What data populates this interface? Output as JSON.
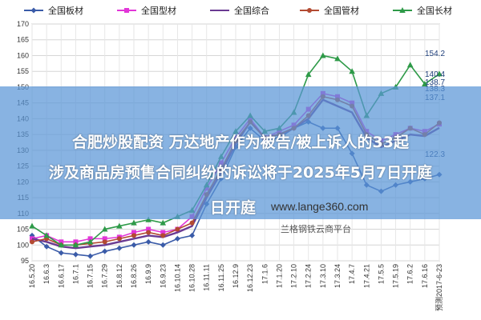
{
  "chart_data": {
    "type": "line",
    "ylim": [
      95,
      170
    ],
    "yticks": [
      95,
      100,
      105,
      110,
      115,
      120,
      125,
      130,
      135,
      140,
      145,
      150,
      155,
      160,
      165,
      170
    ],
    "grid": true,
    "legend_position": "top",
    "categories": [
      "16.5.20",
      "16.6.3",
      "16.6.17",
      "16.7.1",
      "16.7.15",
      "16.7.29",
      "16.8.12",
      "16.8.26",
      "16.9.9",
      "16.9.23",
      "16.10.14",
      "16.10.28",
      "16.11.11",
      "16.11.25",
      "16.12.9",
      "16.12.23",
      "17.1.6",
      "17.1.20",
      "17.2.10",
      "17.2.24",
      "17.3.10",
      "17.3.24",
      "17.4.7",
      "17.4.21",
      "17.5.5",
      "17.5.19",
      "17.6.2",
      "17.6.16",
      "预测2017-6-23"
    ],
    "series": [
      {
        "name": "全国板材",
        "color": "#3a5ba8",
        "marker": "diamond",
        "values": [
          103,
          99.5,
          97.5,
          97,
          96.5,
          98,
          99,
          100,
          101,
          100,
          102,
          103,
          113,
          121,
          131,
          137,
          133,
          134,
          137,
          139,
          137,
          137,
          129,
          119,
          117,
          119,
          120,
          121,
          122.3
        ]
      },
      {
        "name": "全国型材",
        "color": "#e236d8",
        "marker": "square",
        "values": [
          102,
          103,
          101,
          101,
          102,
          102,
          102.5,
          104,
          105,
          104,
          105,
          109,
          118,
          126,
          134,
          140,
          134,
          136,
          138,
          143,
          148,
          147,
          145,
          136,
          133,
          135,
          137,
          136,
          138.3
        ]
      },
      {
        "name": "全国综合",
        "color": "#6a3a92",
        "marker": "line",
        "values": [
          102,
          101,
          99.5,
          99,
          99.5,
          100,
          101,
          102,
          103,
          102.5,
          104,
          106,
          115,
          123,
          132,
          139,
          134,
          135,
          137,
          140,
          146,
          144,
          142,
          134,
          131,
          133,
          135,
          134.5,
          137.1
        ]
      },
      {
        "name": "全国管材",
        "color": "#b34a32",
        "marker": "circle",
        "values": [
          101,
          102,
          100,
          100,
          100.5,
          101,
          102,
          103,
          104,
          103,
          105,
          107,
          116,
          124,
          133,
          139,
          134,
          135,
          137,
          141,
          147,
          146,
          144,
          135,
          132,
          134,
          137,
          135,
          138.7
        ]
      },
      {
        "name": "全国长材",
        "color": "#2e9a48",
        "marker": "triangle",
        "values": [
          106,
          103,
          100,
          100,
          101,
          105,
          106,
          107,
          108,
          107,
          109,
          111,
          119,
          128,
          136,
          141,
          136,
          137,
          142,
          154,
          160,
          159,
          155,
          141,
          148,
          150,
          157,
          151,
          154.2
        ]
      }
    ],
    "annotations": [
      "154.2",
      "140.4",
      "138.7",
      "138.3",
      "137.1",
      "122.3"
    ]
  },
  "overlay": {
    "headline_line1": "合肥炒股配资 万达地产作为被告/被上诉人的33起",
    "headline_line2": "涉及商品房预售合同纠纷的诉讼将于2025年5月7日开庭",
    "headline_line3": "日开庭",
    "watermark_url": "www.lange360.com",
    "watermark_cn": "兰格钢铁云商平台",
    "band_color": "#5a96d7"
  }
}
